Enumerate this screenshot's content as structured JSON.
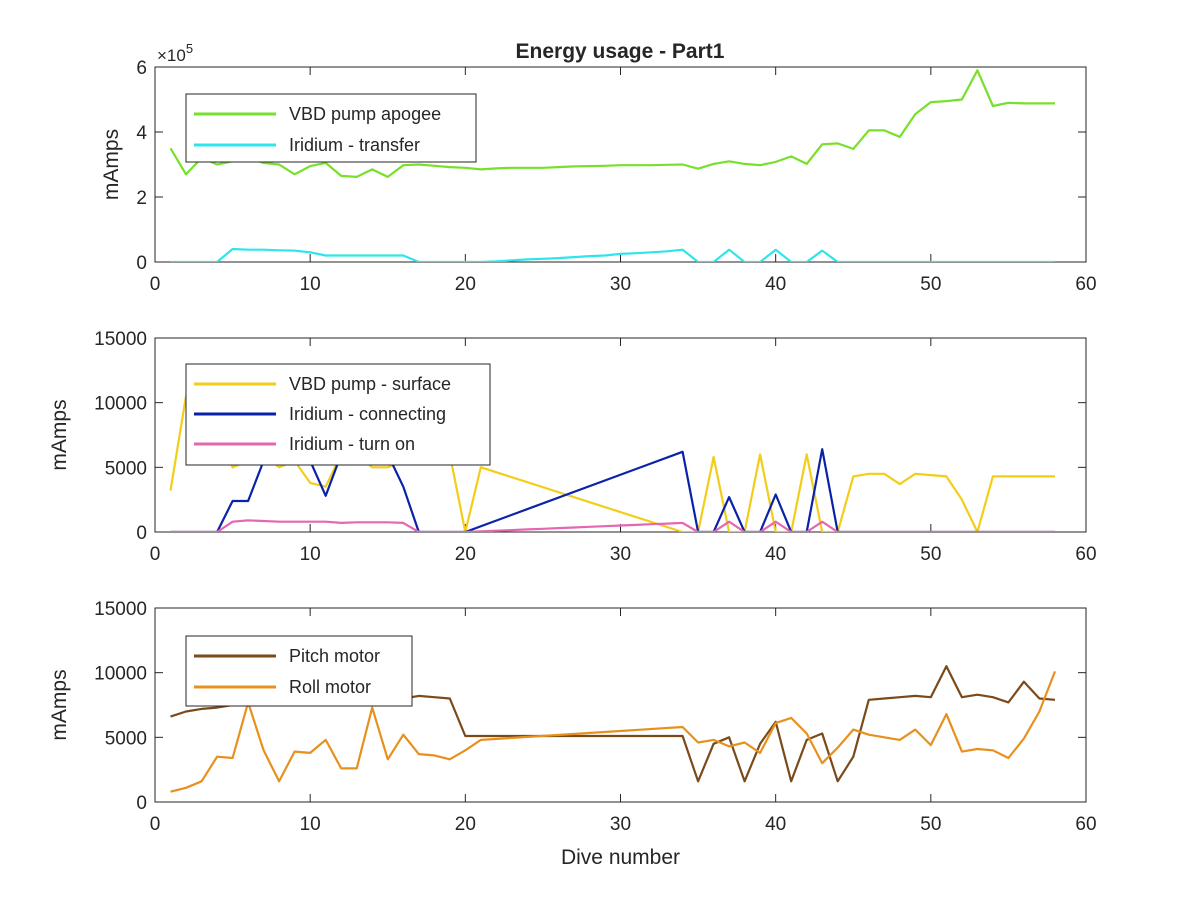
{
  "figure_title": "Energy usage - Part1",
  "chart_data": [
    {
      "type": "line",
      "title": "Energy usage - Part1",
      "xlabel": "",
      "ylabel": "mAmps",
      "xlim": [
        0,
        60
      ],
      "ylim": [
        0,
        600000
      ],
      "xticks": [
        0,
        10,
        20,
        30,
        40,
        50,
        60
      ],
      "xtick_labels": [
        "0",
        "10",
        "20",
        "30",
        "40",
        "50",
        "60"
      ],
      "yticks": [
        0,
        200000,
        400000,
        600000
      ],
      "ytick_labels": [
        "0",
        "2",
        "4",
        "6"
      ],
      "exponent_label": "×10",
      "exponent_power": "5",
      "grid": false,
      "legend_position": "top-left",
      "series": [
        {
          "name": "VBD pump apogee",
          "color": "#77e02b",
          "x": [
            1,
            2,
            3,
            4,
            5,
            6,
            7,
            8,
            9,
            10,
            11,
            12,
            13,
            14,
            15,
            16,
            17,
            18,
            19,
            20,
            21,
            22,
            23,
            24,
            25,
            26,
            27,
            28,
            29,
            30,
            31,
            32,
            33,
            34,
            35,
            36,
            37,
            38,
            39,
            40,
            41,
            42,
            43,
            44,
            45,
            46,
            47,
            48,
            49,
            50,
            51,
            52,
            53,
            54,
            55,
            56,
            57,
            58
          ],
          "values": [
            350000,
            270000,
            320000,
            300000,
            310000,
            320000,
            305000,
            300000,
            270000,
            295000,
            305000,
            265000,
            262000,
            285000,
            262000,
            298000,
            300000,
            296000,
            292000,
            290000,
            285000,
            288000,
            290000,
            290000,
            290000,
            292000,
            294000,
            295000,
            296000,
            298000,
            298000,
            298000,
            299000,
            300000,
            287000,
            302000,
            310000,
            302000,
            298000,
            308000,
            325000,
            302000,
            362000,
            365000,
            348000,
            405000,
            405000,
            385000,
            455000,
            492000,
            495000,
            500000,
            590000,
            480000,
            490000,
            488000,
            488000,
            488000
          ]
        },
        {
          "name": "Iridium - transfer",
          "color": "#2ee5ec",
          "x": [
            1,
            2,
            3,
            4,
            5,
            6,
            7,
            8,
            9,
            10,
            11,
            12,
            13,
            14,
            15,
            16,
            17,
            18,
            19,
            20,
            21,
            22,
            23,
            24,
            25,
            26,
            27,
            28,
            29,
            30,
            31,
            32,
            33,
            34,
            35,
            36,
            37,
            38,
            39,
            40,
            41,
            42,
            43,
            44,
            45,
            46,
            47,
            48,
            49,
            50,
            51,
            52,
            53,
            54,
            55,
            56,
            57,
            58
          ],
          "values": [
            0,
            0,
            0,
            0,
            40000,
            38000,
            38000,
            36000,
            35000,
            30000,
            20000,
            20000,
            20000,
            20000,
            20000,
            20000,
            0,
            0,
            0,
            0,
            0,
            2000,
            5000,
            8000,
            10000,
            12000,
            15000,
            18000,
            20000,
            25000,
            27000,
            30000,
            33000,
            38000,
            0,
            0,
            38000,
            0,
            0,
            38000,
            0,
            0,
            35000,
            0,
            0,
            0,
            0,
            0,
            0,
            0,
            0,
            0,
            0,
            0,
            0,
            0,
            0,
            0
          ]
        }
      ]
    },
    {
      "type": "line",
      "title": "",
      "xlabel": "",
      "ylabel": "mAmps",
      "xlim": [
        0,
        60
      ],
      "ylim": [
        0,
        15000
      ],
      "xticks": [
        0,
        10,
        20,
        30,
        40,
        50,
        60
      ],
      "xtick_labels": [
        "0",
        "10",
        "20",
        "30",
        "40",
        "50",
        "60"
      ],
      "yticks": [
        0,
        5000,
        10000,
        15000
      ],
      "ytick_labels": [
        "0",
        "5000",
        "10000",
        "15000"
      ],
      "grid": false,
      "legend_position": "top-left",
      "series": [
        {
          "name": "VBD pump - surface",
          "color": "#f2cd1a",
          "x": [
            1,
            2,
            3,
            4,
            5,
            6,
            7,
            8,
            9,
            10,
            11,
            12,
            13,
            14,
            15,
            16,
            19,
            20,
            21,
            34,
            35,
            36,
            37,
            38,
            39,
            40,
            41,
            42,
            43,
            44,
            45,
            46,
            47,
            48,
            49,
            50,
            51,
            52,
            53,
            54,
            55,
            56,
            57,
            58
          ],
          "values": [
            3200,
            10500,
            10000,
            8000,
            5000,
            5500,
            6000,
            5000,
            5500,
            3800,
            3500,
            6000,
            6000,
            5000,
            5000,
            5500,
            6000,
            0,
            5000,
            0,
            0,
            5800,
            0,
            0,
            6000,
            0,
            0,
            6000,
            0,
            0,
            4300,
            4500,
            4500,
            3700,
            4500,
            4400,
            4300,
            2500,
            0,
            4300,
            4300,
            4300,
            4300,
            4300
          ]
        },
        {
          "name": "Iridium - connecting",
          "color": "#0a22a8",
          "x": [
            1,
            2,
            3,
            4,
            5,
            6,
            7,
            8,
            9,
            10,
            11,
            12,
            13,
            14,
            15,
            16,
            17,
            18,
            19,
            20,
            34,
            35,
            36,
            37,
            38,
            39,
            40,
            41,
            42,
            43,
            44,
            45,
            46,
            47,
            48,
            49,
            50,
            51,
            52,
            53,
            54,
            55,
            56,
            57,
            58
          ],
          "values": [
            0,
            0,
            0,
            0,
            2400,
            2400,
            5500,
            6000,
            6500,
            5500,
            2800,
            6000,
            6000,
            6000,
            6000,
            3500,
            0,
            0,
            0,
            0,
            6200,
            0,
            0,
            2700,
            0,
            0,
            2900,
            0,
            0,
            6400,
            0,
            0,
            0,
            0,
            0,
            0,
            0,
            0,
            0,
            0,
            0,
            0,
            0,
            0,
            0
          ]
        },
        {
          "name": "Iridium - turn on",
          "color": "#e567b2",
          "x": [
            1,
            2,
            3,
            4,
            5,
            6,
            7,
            8,
            9,
            10,
            11,
            12,
            13,
            14,
            15,
            16,
            17,
            18,
            19,
            20,
            21,
            22,
            23,
            24,
            25,
            26,
            27,
            28,
            29,
            30,
            31,
            32,
            33,
            34,
            35,
            36,
            37,
            38,
            39,
            40,
            41,
            42,
            43,
            44,
            45,
            46,
            47,
            48,
            49,
            50,
            51,
            52,
            53,
            54,
            55,
            56,
            57,
            58
          ],
          "values": [
            0,
            0,
            0,
            0,
            800,
            900,
            850,
            800,
            800,
            800,
            800,
            700,
            750,
            750,
            750,
            700,
            0,
            0,
            0,
            0,
            50,
            100,
            150,
            200,
            250,
            300,
            350,
            400,
            450,
            500,
            550,
            600,
            650,
            700,
            0,
            0,
            800,
            0,
            0,
            800,
            0,
            0,
            800,
            0,
            0,
            0,
            0,
            0,
            0,
            0,
            0,
            0,
            0,
            0,
            0,
            0,
            0,
            0
          ]
        }
      ]
    },
    {
      "type": "line",
      "title": "",
      "xlabel": "Dive number",
      "ylabel": "mAmps",
      "xlim": [
        0,
        60
      ],
      "ylim": [
        0,
        15000
      ],
      "xticks": [
        0,
        10,
        20,
        30,
        40,
        50,
        60
      ],
      "xtick_labels": [
        "0",
        "10",
        "20",
        "30",
        "40",
        "50",
        "60"
      ],
      "yticks": [
        0,
        5000,
        10000,
        15000
      ],
      "ytick_labels": [
        "0",
        "5000",
        "10000",
        "15000"
      ],
      "grid": false,
      "legend_position": "top-left",
      "series": [
        {
          "name": "Pitch motor",
          "color": "#7a4a1a",
          "x": [
            1,
            2,
            3,
            4,
            5,
            6,
            7,
            8,
            9,
            10,
            11,
            12,
            13,
            14,
            15,
            16,
            17,
            18,
            19,
            20,
            21,
            22,
            34,
            35,
            36,
            37,
            38,
            39,
            40,
            41,
            42,
            43,
            44,
            45,
            46,
            47,
            48,
            49,
            50,
            51,
            52,
            53,
            54,
            55,
            56,
            57,
            58
          ],
          "values": [
            6600,
            7000,
            7200,
            7300,
            7500,
            7600,
            7700,
            7700,
            7800,
            7800,
            7800,
            7900,
            7900,
            7900,
            8000,
            8000,
            8200,
            8100,
            8000,
            5100,
            5100,
            5100,
            5100,
            1600,
            4500,
            5000,
            1600,
            4500,
            6200,
            1600,
            4800,
            5300,
            1600,
            3500,
            7900,
            8000,
            8100,
            8200,
            8100,
            10500,
            8100,
            8300,
            8100,
            7700,
            9300,
            8000,
            7900
          ]
        },
        {
          "name": "Roll motor",
          "color": "#e8901e",
          "x": [
            1,
            2,
            3,
            4,
            5,
            6,
            7,
            8,
            9,
            10,
            11,
            12,
            13,
            14,
            15,
            16,
            17,
            18,
            19,
            20,
            21,
            34,
            35,
            36,
            37,
            38,
            39,
            40,
            41,
            42,
            43,
            44,
            45,
            46,
            47,
            48,
            49,
            50,
            51,
            52,
            53,
            54,
            55,
            56,
            57,
            58
          ],
          "values": [
            800,
            1100,
            1600,
            3500,
            3400,
            7700,
            4000,
            1600,
            3900,
            3800,
            4800,
            2600,
            2600,
            7300,
            3300,
            5200,
            3700,
            3600,
            3300,
            4000,
            4800,
            5800,
            4600,
            4800,
            4300,
            4600,
            3800,
            6100,
            6500,
            5300,
            3000,
            4200,
            5600,
            5200,
            5000,
            4800,
            5600,
            4400,
            6800,
            3900,
            4100,
            4000,
            3400,
            4900,
            7000,
            10100
          ]
        }
      ]
    }
  ]
}
